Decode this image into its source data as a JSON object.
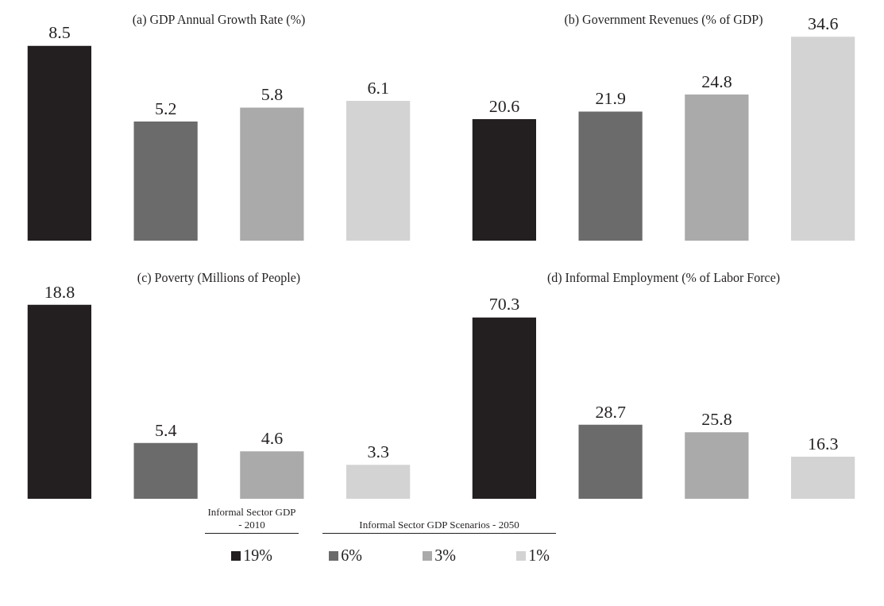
{
  "chart_data": [
    {
      "type": "bar",
      "title": "(a) GDP Annual Growth Rate (%)",
      "categories": [
        null,
        null,
        null,
        null
      ],
      "values": [
        8.5,
        5.2,
        5.8,
        6.1
      ],
      "colors": [
        "#231f20",
        "#6b6b6b",
        "#aaaaaa",
        "#d3d3d3"
      ],
      "tick_labels": false,
      "data_labels": true,
      "grid": false,
      "legend": false
    },
    {
      "type": "bar",
      "title": "(b) Government Revenues (% of GDP)",
      "categories": [
        null,
        null,
        null,
        null
      ],
      "values": [
        20.6,
        21.9,
        24.8,
        34.6
      ],
      "colors": [
        "#231f20",
        "#6b6b6b",
        "#aaaaaa",
        "#d3d3d3"
      ],
      "tick_labels": false,
      "data_labels": true,
      "grid": false,
      "legend": false
    },
    {
      "type": "bar",
      "title": "(c) Poverty (Millions of People)",
      "categories": [
        null,
        null,
        null,
        null
      ],
      "values": [
        18.8,
        5.4,
        4.6,
        3.3
      ],
      "colors": [
        "#231f20",
        "#6b6b6b",
        "#aaaaaa",
        "#d3d3d3"
      ],
      "tick_labels": false,
      "data_labels": true,
      "grid": false,
      "legend": false
    },
    {
      "type": "bar",
      "title": "(d) Informal Employment (% of Labor Force)",
      "categories": [
        null,
        null,
        null,
        null
      ],
      "values": [
        70.3,
        28.7,
        25.8,
        16.3
      ],
      "colors": [
        "#231f20",
        "#6b6b6b",
        "#aaaaaa",
        "#d3d3d3"
      ],
      "tick_labels": false,
      "data_labels": true,
      "grid": false,
      "legend": false
    },
    {
      "type": "other",
      "annotations": [
        "Informal Sector GDP - 2010",
        "Informal Sector GDP Scenarios - 2050"
      ],
      "categories": [
        "19%",
        "6%",
        "3%",
        "1%"
      ],
      "colors": [
        "#231f20",
        "#6b6b6b",
        "#aaaaaa",
        "#d3d3d3"
      ]
    }
  ]
}
